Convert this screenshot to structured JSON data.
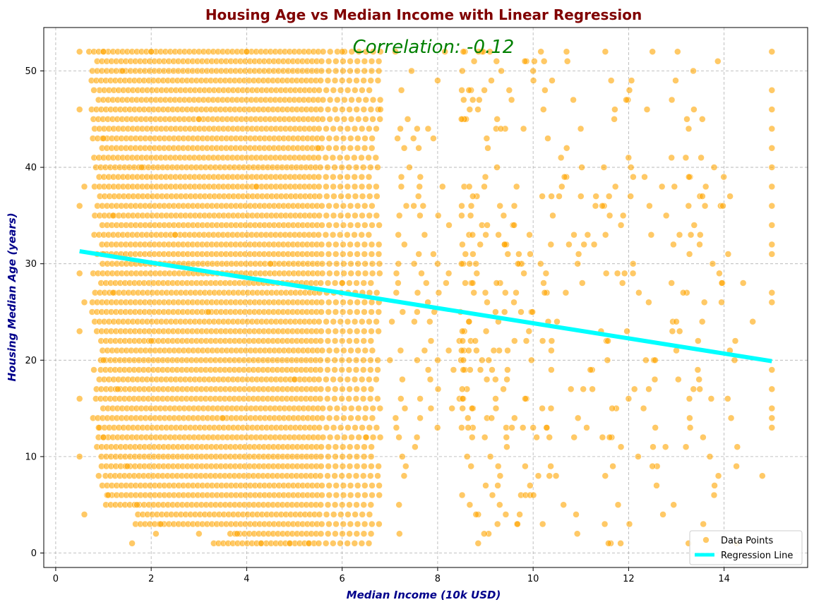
{
  "chart_data": {
    "type": "scatter",
    "title": "Housing Age vs Median Income with Linear Regression",
    "xlabel": "Median Income (10k USD)",
    "ylabel": "Housing Median Age (years)",
    "xlim": [
      -0.25,
      15.75
    ],
    "ylim": [
      -1.5,
      54.5
    ],
    "x_ticks": [
      "0",
      "2",
      "4",
      "6",
      "8",
      "10",
      "12",
      "14"
    ],
    "y_ticks": [
      "0",
      "10",
      "20",
      "30",
      "40",
      "50"
    ],
    "grid": true,
    "grid_style": "dashed",
    "legend_position": "lower-right",
    "annotation": "Correlation: -0.12",
    "series": [
      {
        "name": "Data Points",
        "kind": "scatter",
        "color": "#FFA500",
        "note": "approx. 20,640 points; integer ages 1-52 with a cap band at 52; income 0.5-15.0 with a cap column at 15.0; dense for income 1-6",
        "points": [
          [
            0.5,
            52
          ],
          [
            0.5,
            46
          ],
          [
            0.5,
            36
          ],
          [
            0.5,
            29
          ],
          [
            0.5,
            23
          ],
          [
            0.5,
            16
          ],
          [
            0.5,
            10
          ],
          [
            0.6,
            38
          ],
          [
            0.6,
            26
          ],
          [
            0.6,
            4
          ],
          [
            0.8,
            19
          ],
          [
            0.8,
            48
          ],
          [
            0.9,
            13
          ],
          [
            0.9,
            8
          ],
          [
            1.0,
            52
          ],
          [
            1.0,
            43
          ],
          [
            1.0,
            31
          ],
          [
            1.0,
            20
          ],
          [
            1.0,
            12
          ],
          [
            1.1,
            6
          ],
          [
            1.2,
            35
          ],
          [
            1.2,
            27
          ],
          [
            1.3,
            17
          ],
          [
            1.4,
            50
          ],
          [
            1.5,
            9
          ],
          [
            1.6,
            1
          ],
          [
            1.7,
            5
          ],
          [
            1.8,
            40
          ],
          [
            2.0,
            52
          ],
          [
            2.0,
            22
          ],
          [
            2.1,
            2
          ],
          [
            2.2,
            3
          ],
          [
            2.5,
            33
          ],
          [
            3.0,
            2
          ],
          [
            3.0,
            45
          ],
          [
            3.2,
            25
          ],
          [
            3.5,
            14
          ],
          [
            3.8,
            2
          ],
          [
            4.0,
            52
          ],
          [
            4.2,
            38
          ],
          [
            4.3,
            1
          ],
          [
            4.5,
            30
          ],
          [
            4.9,
            1
          ],
          [
            5.0,
            18
          ],
          [
            5.3,
            1
          ],
          [
            5.5,
            42
          ],
          [
            6.0,
            28
          ],
          [
            6.0,
            52
          ],
          [
            6.5,
            12
          ],
          [
            6.8,
            46
          ],
          [
            7.0,
            20
          ],
          [
            7.2,
            2
          ],
          [
            7.5,
            36
          ],
          [
            7.8,
            44
          ],
          [
            8.0,
            30
          ],
          [
            8.0,
            49
          ],
          [
            8.3,
            15
          ],
          [
            8.5,
            45
          ],
          [
            8.7,
            9
          ],
          [
            9.0,
            27
          ],
          [
            9.0,
            39
          ],
          [
            9.3,
            5
          ],
          [
            9.5,
            48
          ],
          [
            9.7,
            31
          ],
          [
            9.8,
            44
          ],
          [
            10.0,
            13
          ],
          [
            10.0,
            50
          ],
          [
            10.2,
            3
          ],
          [
            10.5,
            24
          ],
          [
            10.7,
            52
          ],
          [
            10.9,
            4
          ],
          [
            11.0,
            37
          ],
          [
            11.2,
            19
          ],
          [
            11.5,
            3
          ],
          [
            11.7,
            45
          ],
          [
            12.0,
            16
          ],
          [
            12.2,
            10
          ],
          [
            12.5,
            52
          ],
          [
            12.7,
            38
          ],
          [
            13.0,
            24
          ],
          [
            13.2,
            11
          ],
          [
            13.5,
            33
          ],
          [
            13.6,
            36
          ],
          [
            13.8,
            7
          ],
          [
            13.9,
            29
          ],
          [
            14.4,
            28
          ],
          [
            14.6,
            24
          ],
          [
            14.8,
            8
          ],
          [
            15.0,
            52
          ],
          [
            15.0,
            48
          ],
          [
            15.0,
            46
          ],
          [
            15.0,
            44
          ],
          [
            15.0,
            42
          ],
          [
            15.0,
            40
          ],
          [
            15.0,
            38
          ],
          [
            15.0,
            36
          ],
          [
            15.0,
            34
          ],
          [
            15.0,
            32
          ],
          [
            15.0,
            31
          ],
          [
            15.0,
            27
          ],
          [
            15.0,
            26
          ],
          [
            15.0,
            19
          ],
          [
            15.0,
            17
          ],
          [
            15.0,
            15
          ],
          [
            15.0,
            14
          ],
          [
            15.0,
            13
          ]
        ]
      },
      {
        "name": "Regression Line",
        "kind": "line",
        "color": "#00FFFF",
        "x": [
          0.5,
          15.0
        ],
        "y": [
          31.3,
          19.9
        ]
      }
    ]
  }
}
